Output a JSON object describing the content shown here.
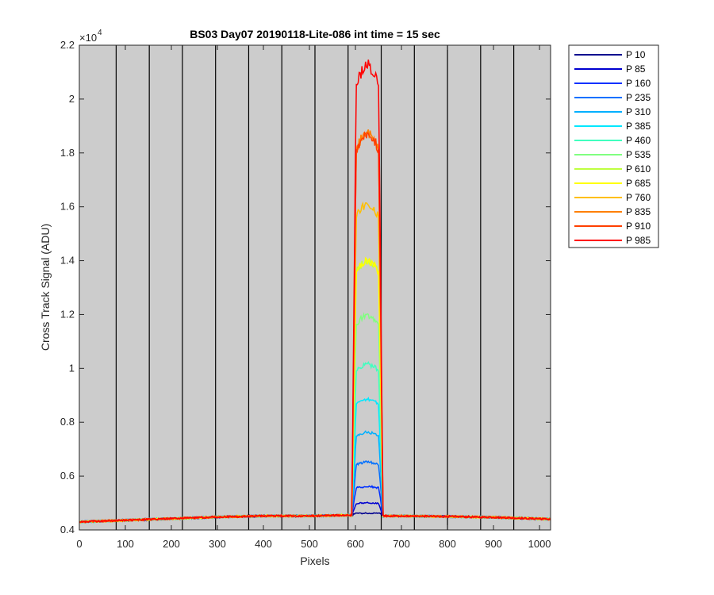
{
  "chart_data": {
    "type": "line",
    "title": "BS03 Day07 20190118-Lite-086 int time = 15 sec",
    "xlabel": "Pixels",
    "ylabel": "Cross Track Signal (ADU)",
    "y_exponent_base": "×10",
    "y_exponent_power": "4",
    "xlim": [
      0,
      1024
    ],
    "ylim": [
      0.4,
      2.2
    ],
    "x_ticks": [
      0,
      100,
      200,
      300,
      400,
      500,
      600,
      700,
      800,
      900,
      1000
    ],
    "x_tick_labels": [
      "0",
      "100",
      "200",
      "300",
      "400",
      "500",
      "600",
      "700",
      "800",
      "900",
      "1000"
    ],
    "y_ticks": [
      0.4,
      0.6,
      0.8,
      1.0,
      1.2,
      1.4,
      1.6,
      1.8,
      2.0,
      2.2
    ],
    "y_tick_labels": [
      "0.4",
      "0.6",
      "0.8",
      "1",
      "1.2",
      "1.4",
      "1.6",
      "1.8",
      "2",
      "2.2"
    ],
    "vertical_divider_x": [
      80,
      152,
      224,
      296,
      368,
      440,
      512,
      584,
      656,
      728,
      800,
      872,
      944
    ],
    "plot_background": "#cccccc",
    "grid": false,
    "legend_position": "outside-right",
    "background_level": {
      "x": [
        0,
        100,
        200,
        300,
        400,
        500,
        585,
        660,
        700,
        800,
        900,
        1024
      ],
      "y": [
        0.43,
        0.436,
        0.442,
        0.448,
        0.452,
        0.452,
        0.455,
        0.452,
        0.452,
        0.45,
        0.447,
        0.44
      ]
    },
    "peak_region": {
      "rise_x": [
        592,
        602
      ],
      "fall_x": [
        650,
        660
      ]
    },
    "series": [
      {
        "name": "P 10",
        "color": "#00008f",
        "peak": 0.462
      },
      {
        "name": "P 85",
        "color": "#0000d0",
        "peak": 0.5
      },
      {
        "name": "P 160",
        "color": "#0030ff",
        "peak": 0.56
      },
      {
        "name": "P 235",
        "color": "#0070ff",
        "peak": 0.65
      },
      {
        "name": "P 310",
        "color": "#00b0ff",
        "peak": 0.76
      },
      {
        "name": "P 385",
        "color": "#00e8ff",
        "peak": 0.88
      },
      {
        "name": "P 460",
        "color": "#40ffbf",
        "peak": 1.01
      },
      {
        "name": "P 535",
        "color": "#80ff80",
        "peak": 1.19
      },
      {
        "name": "P 610",
        "color": "#bfff40",
        "peak": 1.39
      },
      {
        "name": "P 685",
        "color": "#ffff00",
        "peak": 1.39
      },
      {
        "name": "P 760",
        "color": "#ffbf00",
        "peak": 1.6
      },
      {
        "name": "P 835",
        "color": "#ff8000",
        "peak": 1.86
      },
      {
        "name": "P 910",
        "color": "#ff4000",
        "peak": 1.86
      },
      {
        "name": "P 985",
        "color": "#ff0000",
        "peak": 2.11
      }
    ]
  }
}
